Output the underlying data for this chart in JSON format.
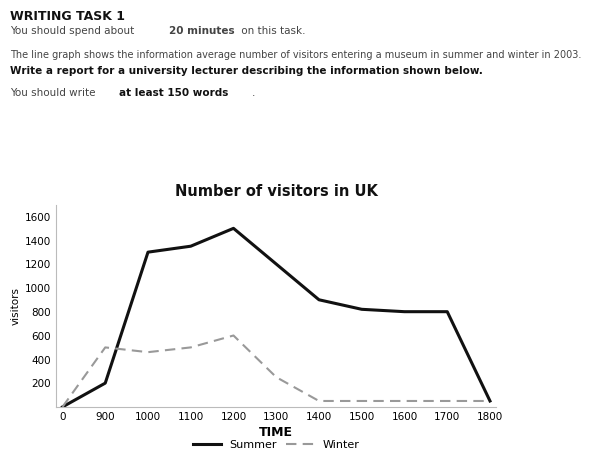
{
  "title": "Number of visitors in UK",
  "xlabel": "TIME",
  "ylabel": "visitors",
  "time_labels": [
    "0",
    "900",
    "1000",
    "1100",
    "1200",
    "1300",
    "1400",
    "1500",
    "1600",
    "1700",
    "1800"
  ],
  "x_positions": [
    0,
    1,
    2,
    3,
    4,
    5,
    6,
    7,
    8,
    9,
    10
  ],
  "summer_values": [
    0,
    200,
    1300,
    1350,
    1500,
    1200,
    900,
    820,
    800,
    800,
    50
  ],
  "winter_values": [
    0,
    500,
    460,
    500,
    600,
    250,
    50,
    50,
    50,
    50,
    50
  ],
  "summer_color": "#111111",
  "winter_color": "#999999",
  "ylim": [
    0,
    1700
  ],
  "yticks": [
    200,
    400,
    600,
    800,
    1000,
    1200,
    1400,
    1600
  ],
  "header_title": "WRITING TASK 1",
  "header_line1_normal": "You should spend about ",
  "header_line1_bold": "20 minutes",
  "header_line1_end": " on this task.",
  "header_line2": "The line graph shows the information average number of visitors entering a museum in summer and winter in 2003.",
  "header_line3": "Write a report for a university lecturer describing the information shown below.",
  "header_line4_normal": "You should write ",
  "header_line4_bold": "at least 150 words",
  "header_line4_end": ".",
  "background_color": "#ffffff",
  "text_color": "#444444"
}
